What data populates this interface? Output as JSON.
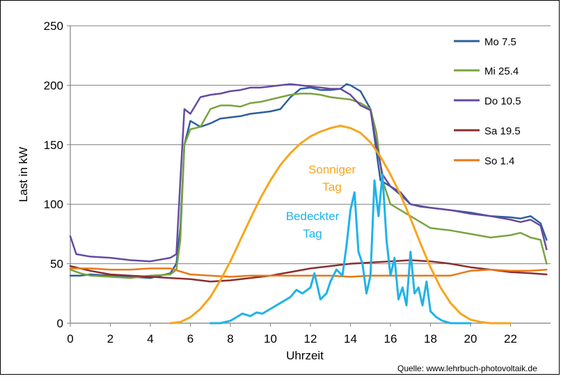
{
  "chart_data": {
    "type": "line",
    "title": "",
    "xlabel": "Uhrzeit",
    "ylabel": "Last in kW",
    "xlim": [
      0,
      24
    ],
    "ylim": [
      0,
      250
    ],
    "xticks": [
      0,
      2,
      4,
      6,
      8,
      10,
      12,
      14,
      16,
      18,
      20,
      22
    ],
    "yticks": [
      0,
      50,
      100,
      150,
      200,
      250
    ],
    "grid": "horizontal",
    "legend_position": "top-right",
    "series": [
      {
        "name": "Mo 7.5",
        "color": "#2e5f9b",
        "x": [
          0,
          0.5,
          1,
          2,
          3,
          4,
          5,
          5.3,
          5.5,
          5.7,
          6,
          6.5,
          7,
          7.5,
          8,
          8.5,
          9,
          9.5,
          10,
          10.5,
          11,
          11.5,
          12,
          12.5,
          13,
          13.5,
          13.8,
          14,
          14.5,
          15,
          15.5,
          16,
          16.5,
          17,
          18,
          19,
          20,
          21,
          22,
          22.5,
          23,
          23.5,
          23.8
        ],
        "y": [
          40,
          40,
          41,
          40,
          39,
          38,
          42,
          50,
          80,
          150,
          170,
          165,
          168,
          172,
          173,
          174,
          176,
          177,
          178,
          180,
          190,
          197,
          198,
          196,
          196,
          197,
          201,
          200,
          195,
          180,
          120,
          115,
          108,
          100,
          97,
          95,
          93,
          90,
          89,
          88,
          90,
          84,
          70
        ]
      },
      {
        "name": "Mi 25.4",
        "color": "#7aa33f",
        "x": [
          0,
          0.5,
          1,
          2,
          3,
          4,
          5,
          5.3,
          5.5,
          5.7,
          6,
          6.5,
          7,
          7.5,
          8,
          8.5,
          9,
          9.5,
          10,
          10.5,
          11,
          11.5,
          12,
          12.5,
          13,
          13.5,
          14,
          14.5,
          15,
          15.3,
          15.6,
          16,
          16.5,
          17,
          17.5,
          18,
          19,
          20,
          21,
          22,
          22.5,
          23,
          23.5,
          23.8
        ],
        "y": [
          45,
          42,
          40,
          39,
          38,
          40,
          41,
          45,
          70,
          150,
          163,
          165,
          180,
          183,
          183,
          182,
          185,
          186,
          188,
          190,
          192,
          193,
          193,
          192,
          190,
          189,
          188,
          185,
          180,
          160,
          120,
          100,
          95,
          90,
          85,
          80,
          78,
          75,
          72,
          74,
          76,
          72,
          70,
          50
        ]
      },
      {
        "name": "Do 10.5",
        "color": "#654ba0",
        "x": [
          0,
          0.3,
          1,
          2,
          3,
          4,
          5,
          5.3,
          5.5,
          5.7,
          6,
          6.5,
          7,
          7.5,
          8,
          8.5,
          9,
          9.5,
          10,
          10.5,
          11,
          11.5,
          12,
          12.5,
          13,
          13.5,
          14,
          14.5,
          15,
          15.3,
          15.6,
          16,
          16.5,
          17,
          17.5,
          18,
          19,
          20,
          21,
          22,
          22.5,
          23,
          23.5,
          23.8
        ],
        "y": [
          73,
          58,
          56,
          55,
          53,
          52,
          55,
          58,
          120,
          180,
          176,
          190,
          192,
          193,
          195,
          196,
          198,
          198,
          199,
          200,
          201,
          200,
          199,
          198,
          197,
          197,
          192,
          183,
          179,
          150,
          125,
          115,
          110,
          100,
          98,
          97,
          95,
          92,
          90,
          87,
          85,
          87,
          82,
          62
        ]
      },
      {
        "name": "Sa 19.5",
        "color": "#8b2e2e",
        "x": [
          0,
          1,
          2,
          3,
          4,
          5,
          6,
          7,
          8,
          9,
          10,
          11,
          12,
          13,
          14,
          15,
          16,
          17,
          18,
          19,
          20,
          21,
          22,
          23,
          23.8
        ],
        "y": [
          48,
          44,
          41,
          40,
          39,
          38,
          37,
          35,
          36,
          38,
          40,
          43,
          46,
          48,
          50,
          51,
          52,
          53,
          52,
          50,
          47,
          45,
          43,
          42,
          41
        ]
      },
      {
        "name": "So 1.4",
        "color": "#e77817",
        "x": [
          0,
          1,
          2,
          3,
          4,
          5,
          6,
          7,
          8,
          9,
          10,
          11,
          12,
          13,
          14,
          15,
          16,
          17,
          18,
          19,
          20,
          21,
          22,
          23,
          23.8
        ],
        "y": [
          46,
          46,
          45,
          45,
          46,
          46,
          41,
          40,
          39,
          40,
          40,
          40,
          40,
          40,
          39,
          40,
          40,
          40,
          40,
          40,
          44,
          45,
          44,
          44,
          45
        ]
      },
      {
        "name": "Sonniger Tag",
        "color": "#f7a51c",
        "x": [
          5,
          5.5,
          6,
          6.5,
          7,
          7.5,
          8,
          8.5,
          9,
          9.5,
          10,
          10.5,
          11,
          11.5,
          12,
          12.5,
          13,
          13.5,
          14,
          14.5,
          15,
          15.5,
          16,
          16.5,
          17,
          17.5,
          18,
          18.5,
          19,
          19.5,
          20,
          20.5,
          21,
          21.5,
          22
        ],
        "y": [
          0,
          1,
          5,
          12,
          22,
          36,
          52,
          70,
          88,
          105,
          120,
          133,
          143,
          151,
          157,
          161,
          164,
          166,
          164,
          160,
          152,
          140,
          125,
          108,
          88,
          67,
          47,
          30,
          17,
          8,
          3,
          1,
          0,
          0,
          0
        ]
      },
      {
        "name": "Bedeckter Tag",
        "color": "#1fb3e8",
        "x": [
          7,
          7.5,
          8,
          8.3,
          8.6,
          9,
          9.3,
          9.6,
          10,
          10.3,
          10.6,
          11,
          11.3,
          11.6,
          12,
          12.2,
          12.5,
          12.8,
          13,
          13.3,
          13.6,
          13.8,
          14,
          14.2,
          14.4,
          14.6,
          14.8,
          15,
          15.2,
          15.4,
          15.6,
          15.8,
          16,
          16.2,
          16.4,
          16.6,
          16.8,
          17,
          17.2,
          17.4,
          17.6,
          17.8,
          18,
          18.3,
          18.6,
          19,
          19.5,
          20
        ],
        "y": [
          0,
          0,
          2,
          5,
          8,
          6,
          9,
          8,
          12,
          15,
          18,
          22,
          28,
          25,
          30,
          42,
          20,
          25,
          35,
          45,
          40,
          65,
          95,
          110,
          60,
          50,
          25,
          40,
          120,
          90,
          125,
          70,
          40,
          55,
          20,
          30,
          15,
          60,
          25,
          30,
          15,
          35,
          10,
          5,
          2,
          0,
          0,
          0
        ]
      }
    ],
    "annotations": [
      {
        "lines": [
          "Sonniger",
          "Tag"
        ],
        "color": "#f7a51c"
      },
      {
        "lines": [
          "Bedeckter",
          "Tag"
        ],
        "color": "#1fb3e8"
      }
    ]
  },
  "source": "Quelle: www.lehrbuch-photovoltaik.de"
}
